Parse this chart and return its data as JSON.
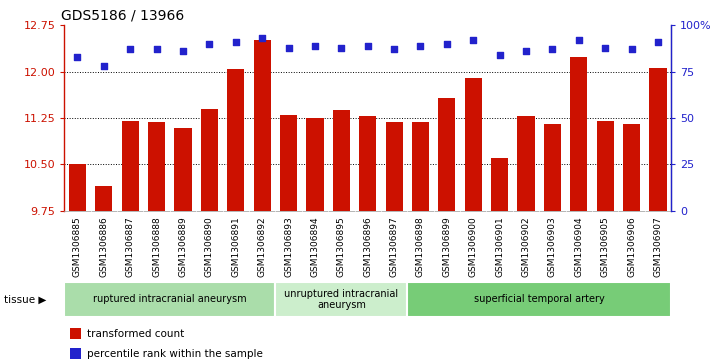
{
  "title": "GDS5186 / 13966",
  "samples": [
    "GSM1306885",
    "GSM1306886",
    "GSM1306887",
    "GSM1306888",
    "GSM1306889",
    "GSM1306890",
    "GSM1306891",
    "GSM1306892",
    "GSM1306893",
    "GSM1306894",
    "GSM1306895",
    "GSM1306896",
    "GSM1306897",
    "GSM1306898",
    "GSM1306899",
    "GSM1306900",
    "GSM1306901",
    "GSM1306902",
    "GSM1306903",
    "GSM1306904",
    "GSM1306905",
    "GSM1306906",
    "GSM1306907"
  ],
  "transformed_count": [
    10.5,
    10.15,
    11.2,
    11.18,
    11.08,
    11.4,
    12.04,
    12.52,
    11.3,
    11.25,
    11.38,
    11.28,
    11.18,
    11.18,
    11.58,
    11.9,
    10.6,
    11.28,
    11.15,
    12.23,
    11.2,
    11.15,
    12.06
  ],
  "percentile_rank": [
    83,
    78,
    87,
    87,
    86,
    90,
    91,
    93,
    88,
    89,
    88,
    89,
    87,
    89,
    90,
    92,
    84,
    86,
    87,
    92,
    88,
    87,
    91
  ],
  "groups": [
    {
      "label": "ruptured intracranial aneurysm",
      "start": 0,
      "end": 8,
      "color": "#aaddaa"
    },
    {
      "label": "unruptured intracranial\naneurysm",
      "start": 8,
      "end": 13,
      "color": "#cceecc"
    },
    {
      "label": "superficial temporal artery",
      "start": 13,
      "end": 23,
      "color": "#77cc77"
    }
  ],
  "tissue_label": "tissue",
  "ylim_left": [
    9.75,
    12.75
  ],
  "ylim_right": [
    0,
    100
  ],
  "yticks_left": [
    9.75,
    10.5,
    11.25,
    12.0,
    12.75
  ],
  "yticks_right": [
    0,
    25,
    50,
    75,
    100
  ],
  "bar_color": "#cc1100",
  "dot_color": "#2222cc",
  "plot_bg_color": "#ffffff",
  "xtick_bg_color": "#dddddd"
}
